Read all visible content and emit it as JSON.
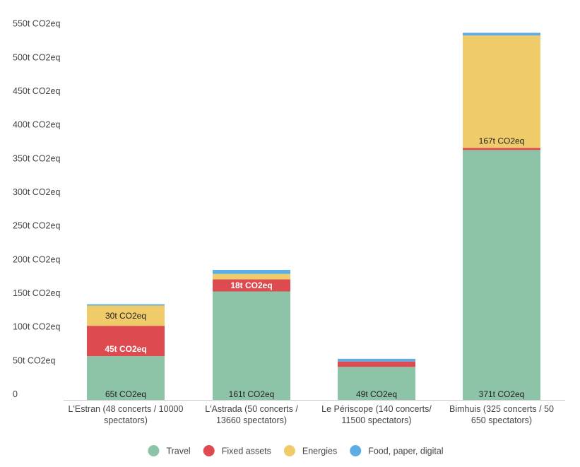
{
  "chart_data": {
    "type": "bar",
    "stacked": true,
    "categories": [
      [
        "L'Estran (48 concerts / 10000",
        "spectators)"
      ],
      [
        "L'Astrada (50 concerts /",
        "13660 spectators)"
      ],
      [
        "Le Périscope (140 concerts/",
        "11500 spectators)"
      ],
      [
        "Bimhuis (325 concerts / 50",
        "650 spectators)"
      ]
    ],
    "series": [
      {
        "name": "Travel",
        "color": "#8dc3a7",
        "values": [
          65,
          161,
          49,
          371
        ],
        "labels": [
          "65t CO2eq",
          "161t CO2eq",
          "49t CO2eq",
          "371t CO2eq"
        ],
        "label_color": "#222222"
      },
      {
        "name": "Fixed assets",
        "color": "#dd4b50",
        "values": [
          45,
          18,
          8,
          3
        ],
        "labels": [
          "45t CO2eq",
          "18t CO2eq",
          "",
          ""
        ],
        "label_color": "#ffffff"
      },
      {
        "name": "Energies",
        "color": "#f0cb69",
        "values": [
          30,
          8,
          0,
          167
        ],
        "labels": [
          "30t CO2eq",
          "",
          "",
          "167t CO2eq"
        ],
        "label_color": "#222222"
      },
      {
        "name": "Food, paper, digital",
        "color": "#5dade2",
        "values": [
          2,
          6,
          4,
          4
        ],
        "labels": [
          "",
          "",
          "",
          ""
        ],
        "label_color": "#222222"
      }
    ],
    "y_ticks": [
      {
        "value": 0,
        "label": "0"
      },
      {
        "value": 50,
        "label": "50t CO2eq"
      },
      {
        "value": 100,
        "label": "100t CO2eq"
      },
      {
        "value": 150,
        "label": "150t CO2eq"
      },
      {
        "value": 200,
        "label": "200t CO2eq"
      },
      {
        "value": 250,
        "label": "250t CO2eq"
      },
      {
        "value": 300,
        "label": "300t CO2eq"
      },
      {
        "value": 350,
        "label": "350t CO2eq"
      },
      {
        "value": 400,
        "label": "400t CO2eq"
      },
      {
        "value": 450,
        "label": "450t CO2eq"
      },
      {
        "value": 500,
        "label": "500t CO2eq"
      },
      {
        "value": 550,
        "label": "550t CO2eq"
      }
    ],
    "ylim": [
      0,
      550
    ],
    "grid": false,
    "legend_position": "bottom-center"
  }
}
